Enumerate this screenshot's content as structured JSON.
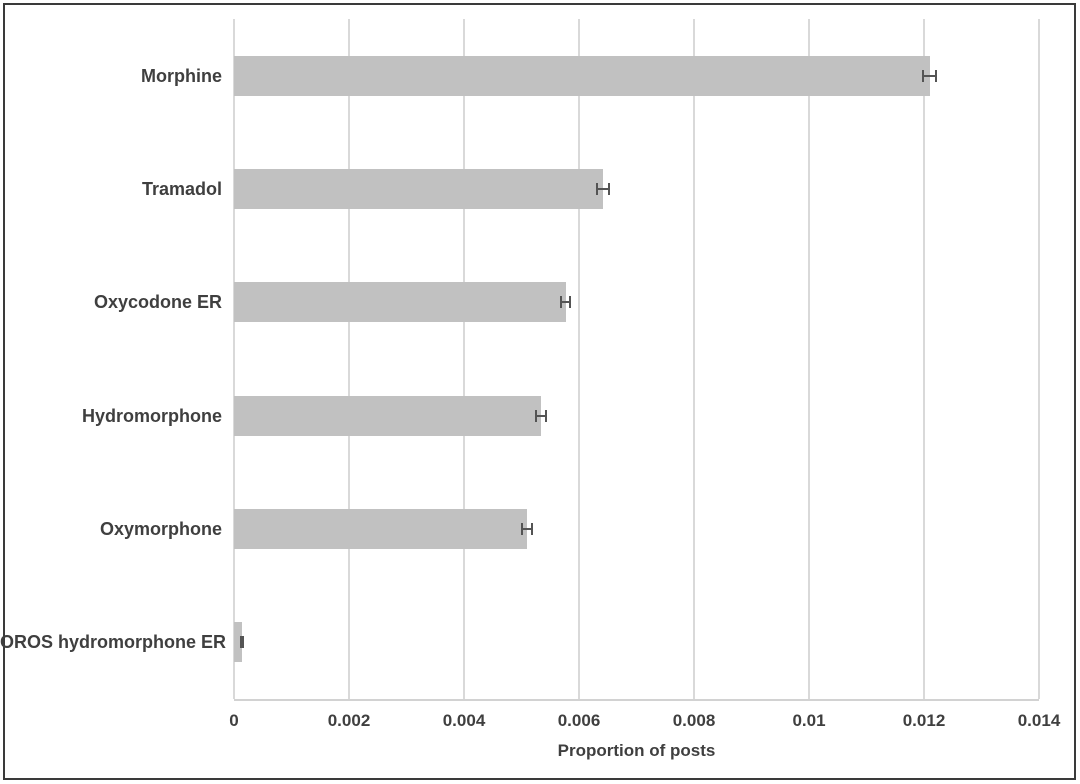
{
  "chart_data": {
    "type": "bar",
    "orientation": "horizontal",
    "title": "",
    "xlabel": "Proportion of posts",
    "ylabel": "",
    "categories": [
      "Morphine",
      "Tramadol",
      "Oxycodone ER",
      "Hydromorphone",
      "Oxymorphone",
      "OROS hydromorphone ER"
    ],
    "values": [
      0.0121,
      0.00642,
      0.00577,
      0.00534,
      0.0051,
      0.00014
    ],
    "errors": [
      0.00011,
      0.0001,
      8e-05,
      9e-05,
      9e-05,
      2e-05
    ],
    "xlim": [
      0,
      0.014
    ],
    "xticks": [
      0,
      0.002,
      0.004,
      0.006,
      0.008,
      0.01,
      0.012,
      0.014
    ],
    "xtick_labels": [
      "0",
      "0.002",
      "0.004",
      "0.006",
      "0.008",
      "0.01",
      "0.012",
      "0.014"
    ],
    "grid": true,
    "legend": false,
    "colors": {
      "bar": "#c1c1c1",
      "error_bar": "#545454",
      "gridline": "#d9d9d9",
      "axis_line": "#d2d2d2",
      "text": "#3f3f3f",
      "figure_border": "#3a3a3a",
      "background": "#ffffff"
    }
  }
}
